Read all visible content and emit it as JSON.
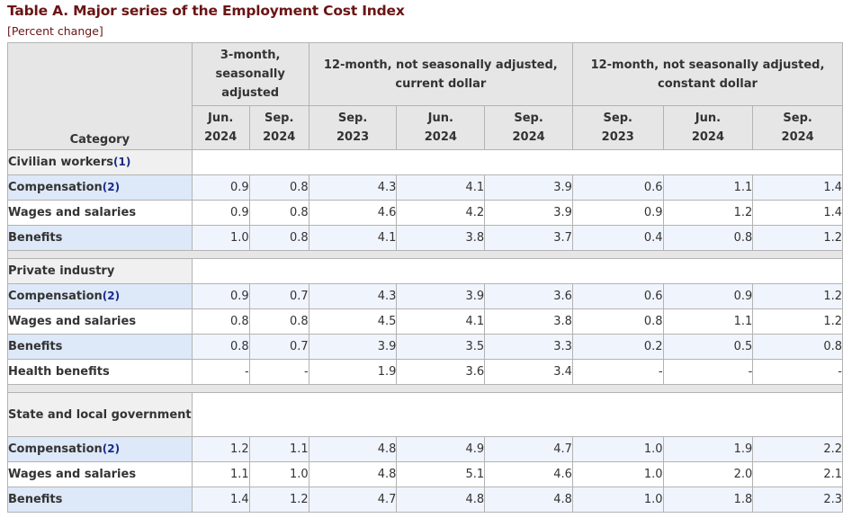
{
  "title": "Table A. Major series of the Employment Cost Index",
  "subtitle": "[Percent change]",
  "header": {
    "category": "Category",
    "groups": [
      "3-month, seasonally adjusted",
      "12-month, not seasonally adjusted, current dollar",
      "12-month, not seasonally adjusted, constant dollar"
    ],
    "periods": [
      [
        "Jun.",
        "2024"
      ],
      [
        "Sep.",
        "2024"
      ],
      [
        "Sep.",
        "2023"
      ],
      [
        "Jun.",
        "2024"
      ],
      [
        "Sep.",
        "2024"
      ],
      [
        "Sep.",
        "2023"
      ],
      [
        "Jun.",
        "2024"
      ],
      [
        "Sep.",
        "2024"
      ]
    ]
  },
  "sections": [
    {
      "label": "Civilian workers",
      "footnote": "(1)",
      "rows": [
        {
          "label": "Compensation",
          "footnote": "(2)",
          "values": [
            "0.9",
            "0.8",
            "4.3",
            "4.1",
            "3.9",
            "0.6",
            "1.1",
            "1.4"
          ]
        },
        {
          "label": "Wages and salaries",
          "footnote": "",
          "values": [
            "0.9",
            "0.8",
            "4.6",
            "4.2",
            "3.9",
            "0.9",
            "1.2",
            "1.4"
          ]
        },
        {
          "label": "Benefits",
          "footnote": "",
          "values": [
            "1.0",
            "0.8",
            "4.1",
            "3.8",
            "3.7",
            "0.4",
            "0.8",
            "1.2"
          ]
        }
      ]
    },
    {
      "label": "Private industry",
      "footnote": "",
      "rows": [
        {
          "label": "Compensation",
          "footnote": "(2)",
          "values": [
            "0.9",
            "0.7",
            "4.3",
            "3.9",
            "3.6",
            "0.6",
            "0.9",
            "1.2"
          ]
        },
        {
          "label": "Wages and salaries",
          "footnote": "",
          "values": [
            "0.8",
            "0.8",
            "4.5",
            "4.1",
            "3.8",
            "0.8",
            "1.1",
            "1.2"
          ]
        },
        {
          "label": "Benefits",
          "footnote": "",
          "values": [
            "0.8",
            "0.7",
            "3.9",
            "3.5",
            "3.3",
            "0.2",
            "0.5",
            "0.8"
          ]
        },
        {
          "label": "Health benefits",
          "footnote": "",
          "values": [
            "-",
            "-",
            "1.9",
            "3.6",
            "3.4",
            "-",
            "-",
            "-"
          ]
        }
      ]
    },
    {
      "label": "State and local government",
      "footnote": "",
      "rows": [
        {
          "label": "Compensation",
          "footnote": "(2)",
          "values": [
            "1.2",
            "1.1",
            "4.8",
            "4.9",
            "4.7",
            "1.0",
            "1.9",
            "2.2"
          ]
        },
        {
          "label": "Wages and salaries",
          "footnote": "",
          "values": [
            "1.1",
            "1.0",
            "4.8",
            "5.1",
            "4.6",
            "1.0",
            "2.0",
            "2.1"
          ]
        },
        {
          "label": "Benefits",
          "footnote": "",
          "values": [
            "1.4",
            "1.2",
            "4.7",
            "4.8",
            "4.8",
            "1.0",
            "1.8",
            "2.3"
          ]
        }
      ]
    }
  ]
}
